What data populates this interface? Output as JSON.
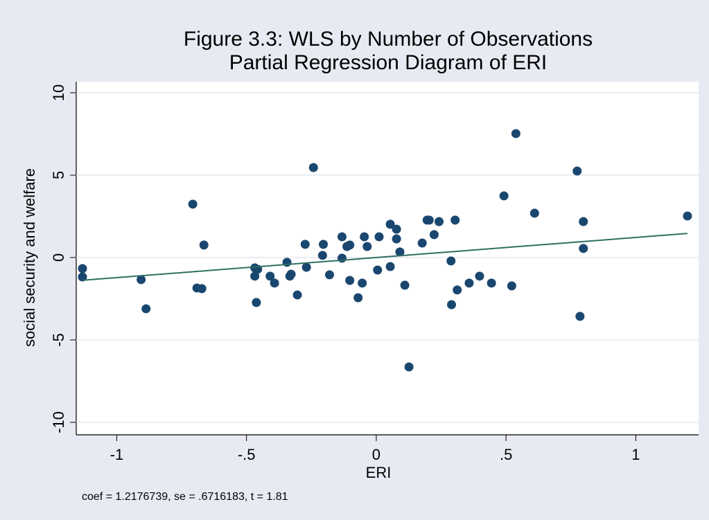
{
  "chart_data": {
    "type": "scatter",
    "title": "Figure 3.3: WLS by Number of Observations",
    "subtitle": "Partial Regression Diagram of ERI",
    "x_label": "ERI",
    "y_label": "social security and welfare",
    "note": "coef = 1.2176739, se = .6716183, t = 1.81",
    "xlim": [
      -1.156,
      1.242
    ],
    "ylim": [
      -10.76,
      10.67
    ],
    "xticks": [
      -1,
      {
        "value": -0.5,
        "label": "-.5"
      },
      0,
      {
        "value": 0.5,
        "label": ".5"
      },
      1
    ],
    "yticks": [
      -10,
      -5,
      0,
      5,
      10
    ],
    "grid": true,
    "series": [
      {
        "type": "scatter",
        "color": "#1a476f",
        "x": [
          -1.132,
          -1.132,
          -0.906,
          -0.887,
          -0.707,
          -0.691,
          -0.672,
          -0.664,
          -0.468,
          -0.468,
          -0.457,
          -0.462,
          -0.409,
          -0.392,
          -0.344,
          -0.333,
          -0.328,
          -0.304,
          -0.274,
          -0.269,
          -0.242,
          -0.204,
          -0.207,
          -0.18,
          -0.132,
          -0.132,
          -0.113,
          -0.102,
          -0.102,
          -0.07,
          -0.054,
          -0.046,
          -0.035,
          0.005,
          0.011,
          0.054,
          0.054,
          0.078,
          0.078,
          0.091,
          0.11,
          0.126,
          0.177,
          0.196,
          0.204,
          0.223,
          0.242,
          0.288,
          0.29,
          0.304,
          0.312,
          0.358,
          0.398,
          0.444,
          0.492,
          0.522,
          0.538,
          0.61,
          0.774,
          0.785,
          0.798,
          0.798,
          1.199
        ],
        "values": [
          -0.67,
          -1.18,
          -1.34,
          -3.11,
          3.24,
          -1.85,
          -1.89,
          0.76,
          -0.63,
          -1.13,
          -0.71,
          -2.73,
          -1.13,
          -1.55,
          -0.29,
          -1.13,
          -1.01,
          -2.27,
          0.8,
          -0.59,
          5.46,
          0.8,
          0.13,
          -1.05,
          1.26,
          -0.04,
          0.67,
          0.76,
          -1.39,
          -2.44,
          -1.55,
          1.26,
          0.67,
          -0.76,
          1.26,
          -0.55,
          2.02,
          1.72,
          1.13,
          0.34,
          -1.68,
          -6.64,
          0.88,
          2.27,
          2.27,
          1.39,
          2.18,
          -0.21,
          -2.86,
          2.27,
          -1.97,
          -1.55,
          -1.13,
          -1.55,
          3.74,
          -1.72,
          7.52,
          2.69,
          5.25,
          -3.57,
          2.18,
          0.55,
          2.52
        ]
      },
      {
        "type": "line",
        "color": "#2e6e62",
        "x": [
          -1.132,
          1.199
        ],
        "values": [
          -1.38,
          1.46
        ]
      }
    ]
  }
}
